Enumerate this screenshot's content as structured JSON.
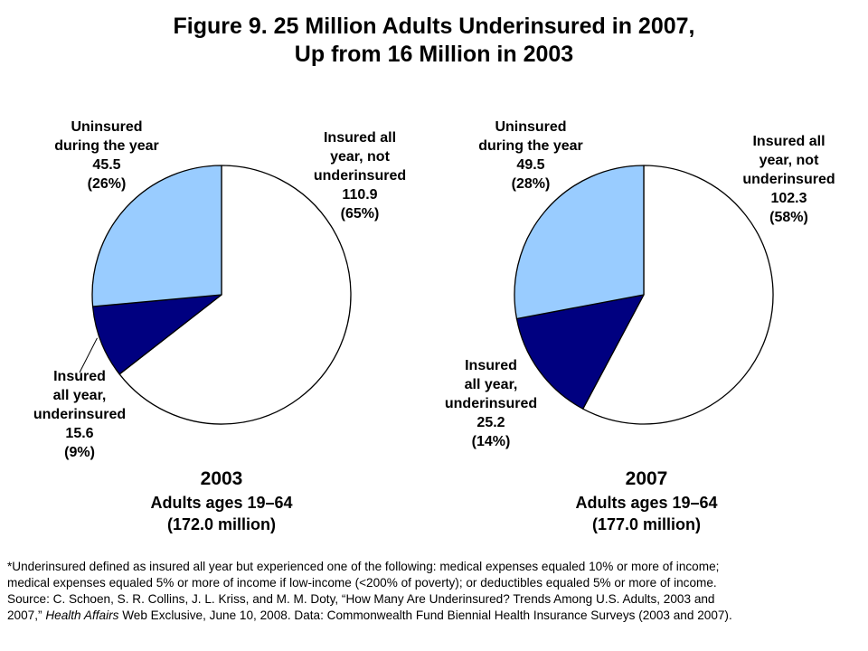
{
  "title": {
    "line1": "Figure 9. 25 Million Adults Underinsured in 2007,",
    "line2": "Up from 16 Million in 2003"
  },
  "chart_data": [
    {
      "type": "pie",
      "year": "2003",
      "subtitle_line1": "Adults ages 19–64",
      "subtitle_line2": "(172.0 million)",
      "slices": [
        {
          "label_lines": [
            "Insured all",
            "year, not",
            "underinsured"
          ],
          "value": 110.9,
          "value_text": "110.9",
          "percent_text": "(65%)",
          "color": "#ffffff"
        },
        {
          "label_lines": [
            "Insured",
            "all year,",
            "underinsured"
          ],
          "value": 15.6,
          "value_text": "15.6",
          "percent_text": "(9%)",
          "color": "#000080"
        },
        {
          "label_lines": [
            "Uninsured",
            "during the year"
          ],
          "value": 45.5,
          "value_text": "45.5",
          "percent_text": "(26%)",
          "color": "#99ccff"
        }
      ]
    },
    {
      "type": "pie",
      "year": "2007",
      "subtitle_line1": "Adults ages 19–64",
      "subtitle_line2": "(177.0 million)",
      "slices": [
        {
          "label_lines": [
            "Insured all",
            "year, not",
            "underinsured"
          ],
          "value": 102.3,
          "value_text": "102.3",
          "percent_text": "(58%)",
          "color": "#ffffff"
        },
        {
          "label_lines": [
            "Insured",
            "all year,",
            "underinsured"
          ],
          "value": 25.2,
          "value_text": "25.2",
          "percent_text": "(14%)",
          "color": "#000080"
        },
        {
          "label_lines": [
            "Uninsured",
            "during the year"
          ],
          "value": 49.5,
          "value_text": "49.5",
          "percent_text": "(28%)",
          "color": "#99ccff"
        }
      ]
    }
  ],
  "footnote": {
    "line1": "*Underinsured defined as insured all year but experienced one of the following: medical expenses equaled 10% or more of income;",
    "line2": "medical expenses equaled 5% or more of income if low-income (<200% of poverty); or deductibles equaled 5% or more of income.",
    "line3": "Source: C. Schoen, S. R. Collins, J. L. Kriss, and M. M. Doty, “How Many Are Underinsured? Trends Among U.S. Adults, 2003 and",
    "line4_pre": "2007,”",
    "line4_journal": "Health Affairs",
    "line4_post": "Web Exclusive, June 10, 2008. Data: Commonwealth Fund Biennial Health Insurance Surveys (2003 and 2007)."
  }
}
